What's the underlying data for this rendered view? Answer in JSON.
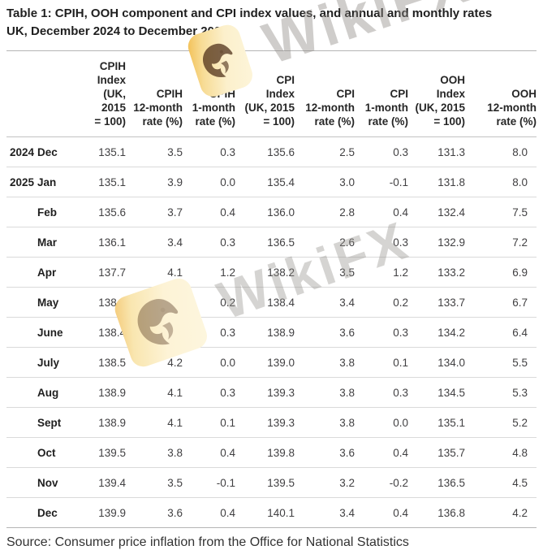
{
  "header": {
    "title": "Table 1: CPIH, OOH component and CPI index values, and annual and monthly rates",
    "subtitle": "UK, December 2024 to December 2025"
  },
  "watermark": {
    "text": "WikiFX",
    "badge_icon": "eagle-icon",
    "badge_color": "#f8e3a1",
    "text_color": "#918d88"
  },
  "table": {
    "column_headers": [
      "CPIH\nIndex\n(UK, 2015\n= 100)",
      "CPIH\n12-month\nrate (%)",
      "CPIH\n1-month\nrate (%)",
      "CPI\nIndex\n(UK, 2015\n= 100)",
      "CPI\n12-month\nrate (%)",
      "CPI\n1-month\nrate (%)",
      "OOH\nIndex\n(UK, 2015\n= 100)",
      "OOH\n12-month\nrate (%)"
    ],
    "rows": [
      {
        "year": "2024",
        "month": "Dec",
        "values": [
          "135.1",
          "3.5",
          "0.3",
          "135.6",
          "2.5",
          "0.3",
          "131.3",
          "8.0"
        ]
      },
      {
        "year": "2025",
        "month": "Jan",
        "values": [
          "135.1",
          "3.9",
          "0.0",
          "135.4",
          "3.0",
          "-0.1",
          "131.8",
          "8.0"
        ]
      },
      {
        "year": "",
        "month": "Feb",
        "values": [
          "135.6",
          "3.7",
          "0.4",
          "136.0",
          "2.8",
          "0.4",
          "132.4",
          "7.5"
        ]
      },
      {
        "year": "",
        "month": "Mar",
        "values": [
          "136.1",
          "3.4",
          "0.3",
          "136.5",
          "2.6",
          "0.3",
          "132.9",
          "7.2"
        ]
      },
      {
        "year": "",
        "month": "Apr",
        "values": [
          "137.7",
          "4.1",
          "1.2",
          "138.2",
          "3.5",
          "1.2",
          "133.2",
          "6.9"
        ]
      },
      {
        "year": "",
        "month": "May",
        "values": [
          "138.0",
          "4.0",
          "0.2",
          "138.4",
          "3.4",
          "0.2",
          "133.7",
          "6.7"
        ]
      },
      {
        "year": "",
        "month": "June",
        "values": [
          "138.4",
          "4.1",
          "0.3",
          "138.9",
          "3.6",
          "0.3",
          "134.2",
          "6.4"
        ]
      },
      {
        "year": "",
        "month": "July",
        "values": [
          "138.5",
          "4.2",
          "0.0",
          "139.0",
          "3.8",
          "0.1",
          "134.0",
          "5.5"
        ]
      },
      {
        "year": "",
        "month": "Aug",
        "values": [
          "138.9",
          "4.1",
          "0.3",
          "139.3",
          "3.8",
          "0.3",
          "134.5",
          "5.3"
        ]
      },
      {
        "year": "",
        "month": "Sept",
        "values": [
          "138.9",
          "4.1",
          "0.1",
          "139.3",
          "3.8",
          "0.0",
          "135.1",
          "5.2"
        ]
      },
      {
        "year": "",
        "month": "Oct",
        "values": [
          "139.5",
          "3.8",
          "0.4",
          "139.8",
          "3.6",
          "0.4",
          "135.7",
          "4.8"
        ]
      },
      {
        "year": "",
        "month": "Nov",
        "values": [
          "139.4",
          "3.5",
          "-0.1",
          "139.5",
          "3.2",
          "-0.2",
          "136.5",
          "4.5"
        ]
      },
      {
        "year": "",
        "month": "Dec",
        "values": [
          "139.9",
          "3.6",
          "0.4",
          "140.1",
          "3.4",
          "0.4",
          "136.8",
          "4.2"
        ]
      }
    ]
  },
  "footer": {
    "source": "Source: Consumer price inflation from the Office for National Statistics"
  }
}
